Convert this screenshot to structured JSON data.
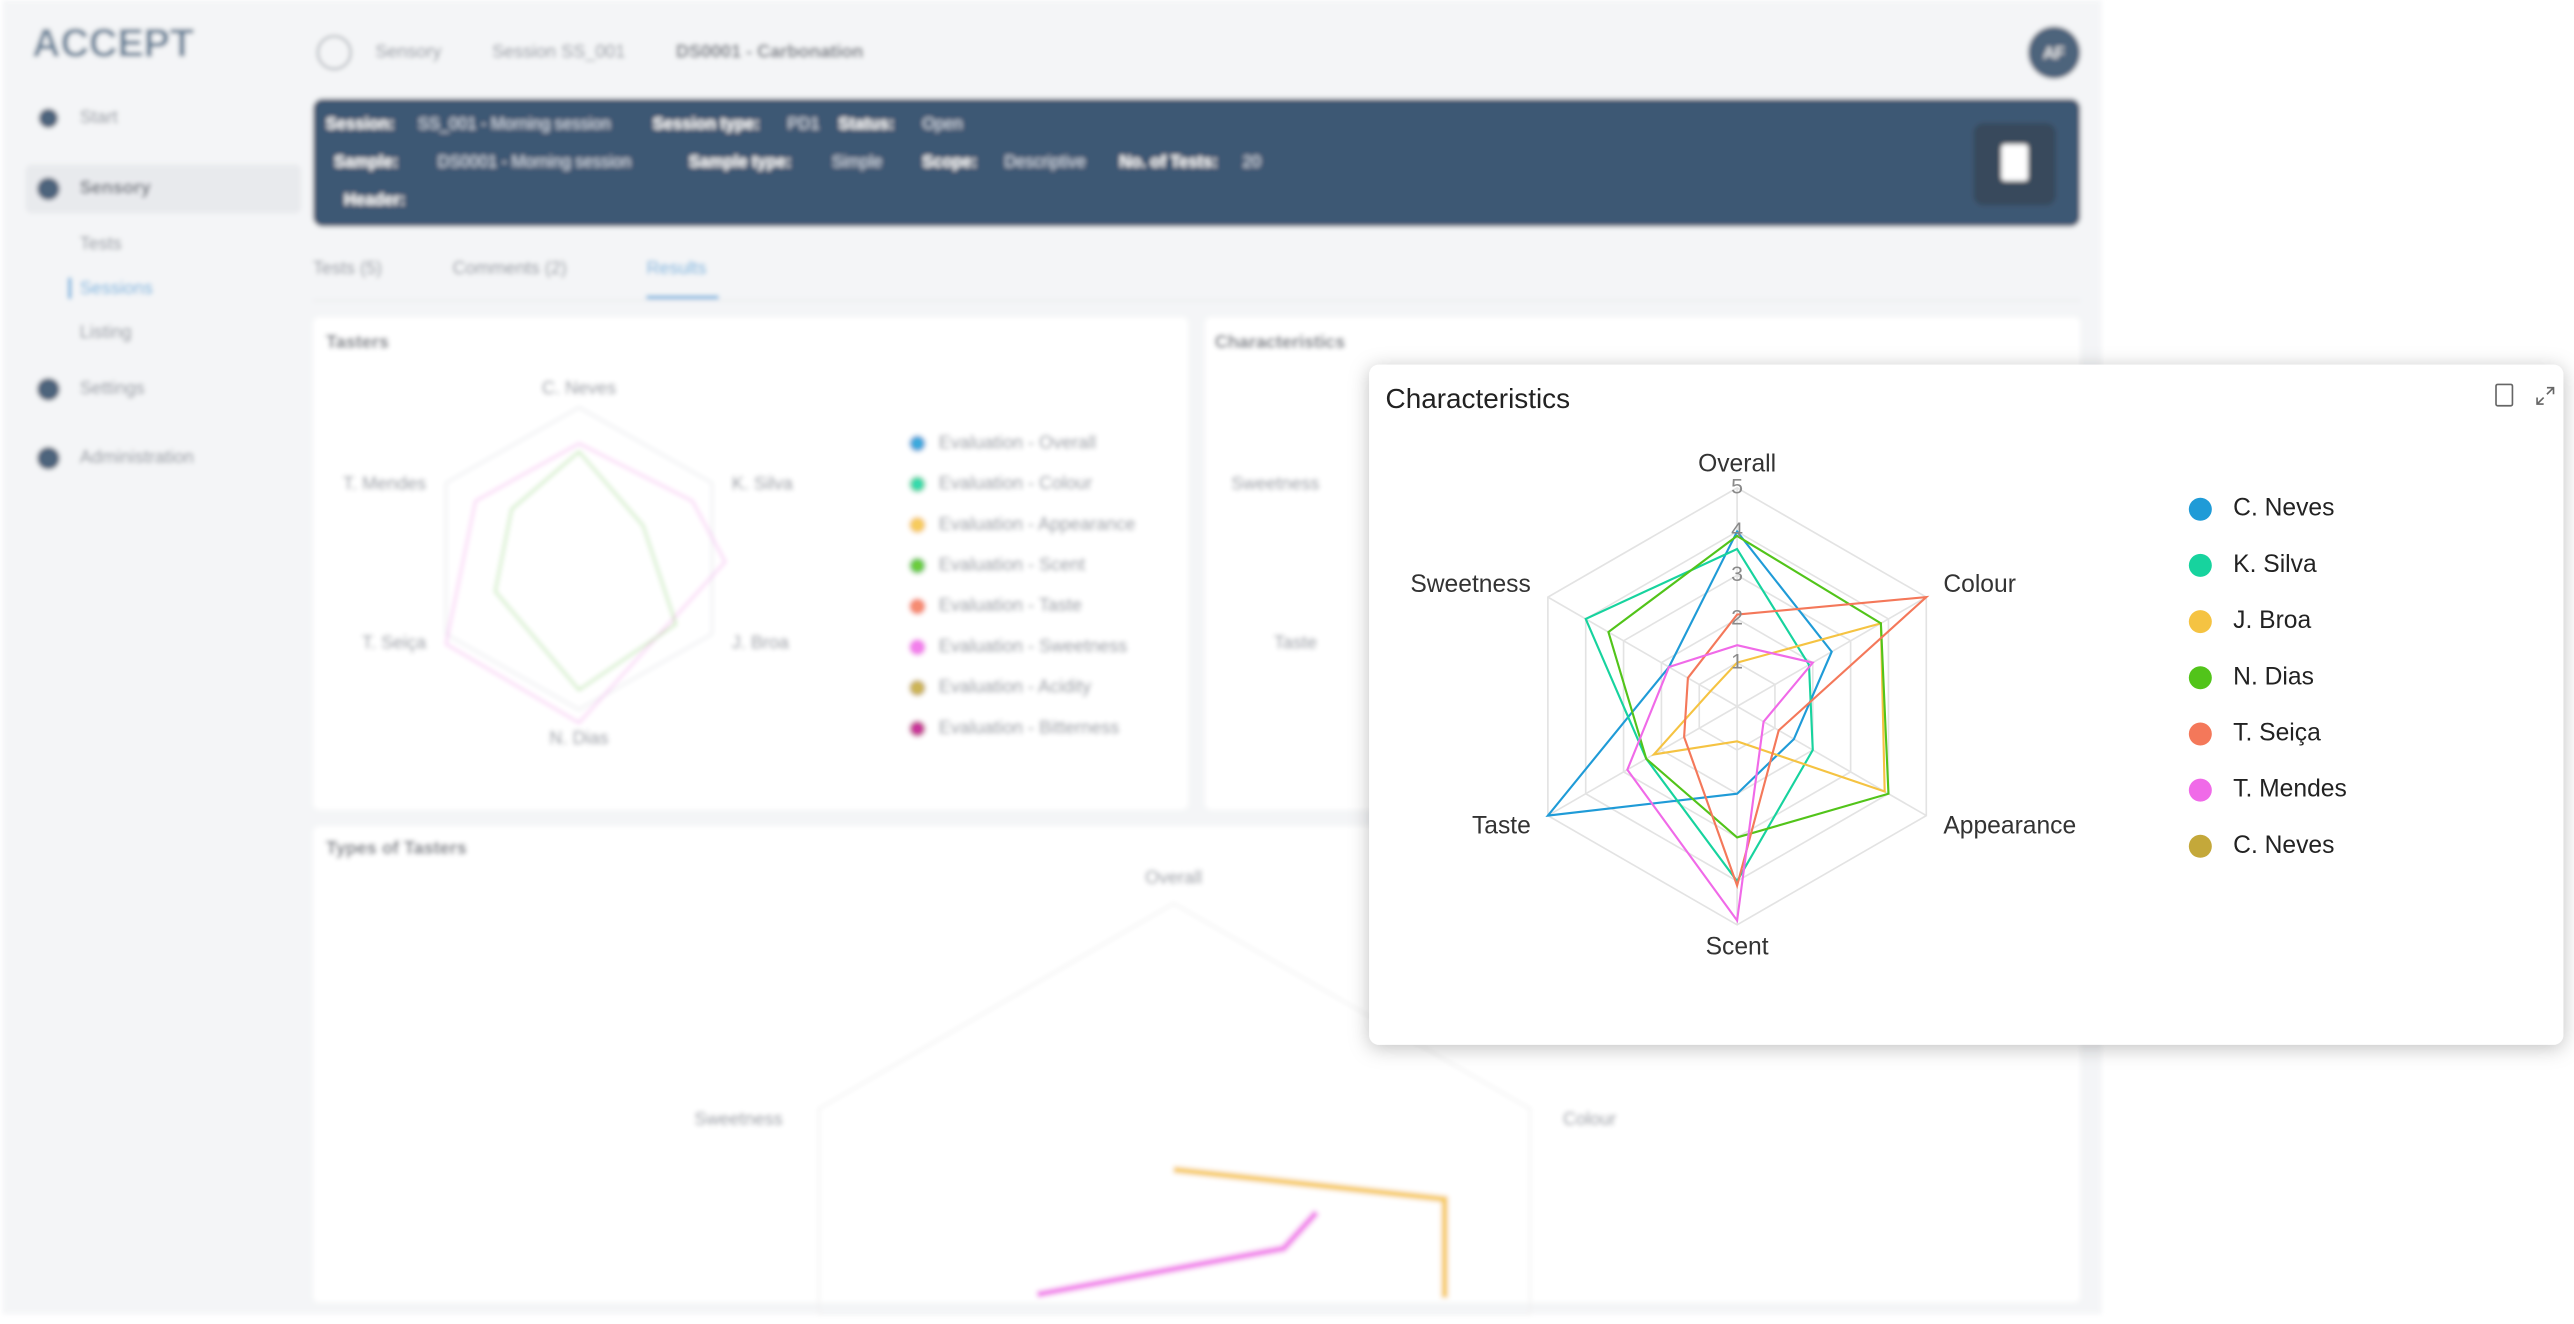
{
  "sidebar": {
    "logo": "ACCEPT",
    "items": [
      "Start",
      "Sensory",
      "Tests",
      "Sessions",
      "Listing",
      "Settings",
      "Administration"
    ]
  },
  "breadcrumb": [
    "Sensory",
    "Session SS_001",
    "DS0001 - Carbonation"
  ],
  "avatar": "AF",
  "header": {
    "session_label": "Session:",
    "session": "SS_001 - Morning session",
    "session_type_label": "Session type:",
    "session_type": "PD1",
    "status_label": "Status:",
    "status": "Open",
    "sample_label": "Sample:",
    "sample": "DS0001 - Morning session",
    "sample_type_label": "Sample type:",
    "sample_type": "Simple",
    "scope_label": "Scope:",
    "scope": "Descriptive",
    "tests_label": "No. of Tests:",
    "tests": "20",
    "header_label": "Header:"
  },
  "tabs": [
    "Tests (5)",
    "Comments (2)",
    "Results"
  ],
  "panels": {
    "tasters": {
      "title": "Tasters",
      "axes": [
        "C. Neves",
        "K. Silva",
        "J. Broa",
        "N. Dias",
        "T. Seiça",
        "T. Mendes"
      ],
      "legend": [
        "Evaluation - Overall",
        "Evaluation - Colour",
        "Evaluation - Appearance",
        "Evaluation - Scent",
        "Evaluation - Taste",
        "Evaluation - Sweetness",
        "Evaluation - Acidity",
        "Evaluation - Bitterness"
      ]
    },
    "characteristics": {
      "title": "Characteristics",
      "axes": [
        "Sweetness",
        "Taste"
      ]
    },
    "types": {
      "title": "Types of Tasters",
      "axes": [
        "Overall",
        "Colour",
        "Sweetness"
      ]
    }
  },
  "chart_data": {
    "type": "radar",
    "title": "Characteristics",
    "categories": [
      "Overall",
      "Colour",
      "Appearance",
      "Scent",
      "Taste",
      "Sweetness"
    ],
    "ylim": [
      0,
      5
    ],
    "yticks": [
      1,
      2,
      3,
      4,
      5
    ],
    "grid": true,
    "legend": "right",
    "series": [
      {
        "name": "C. Neves",
        "color": "#1f9bd7",
        "values": [
          4.0,
          2.5,
          1.5,
          2.0,
          5.0,
          1.8
        ]
      },
      {
        "name": "K. Silva",
        "color": "#17d39e",
        "values": [
          3.6,
          1.9,
          2.0,
          4.0,
          2.4,
          4.0
        ]
      },
      {
        "name": "J. Broa",
        "color": "#f5c342",
        "values": [
          1.0,
          3.8,
          3.9,
          0.8,
          2.2,
          0.7
        ]
      },
      {
        "name": "N. Dias",
        "color": "#52c41a",
        "values": [
          3.9,
          3.8,
          4.0,
          3.0,
          2.4,
          3.4
        ]
      },
      {
        "name": "T. Seiça",
        "color": "#f4785a",
        "values": [
          2.1,
          5.0,
          1.1,
          4.1,
          1.4,
          1.3
        ]
      },
      {
        "name": "T. Mendes",
        "color": "#f06ae8",
        "values": [
          1.4,
          2.0,
          0.7,
          4.9,
          2.9,
          1.8
        ]
      },
      {
        "name": "C. Neves",
        "color": "#c4a83a",
        "values": [
          null,
          null,
          null,
          null,
          null,
          null
        ]
      }
    ]
  }
}
